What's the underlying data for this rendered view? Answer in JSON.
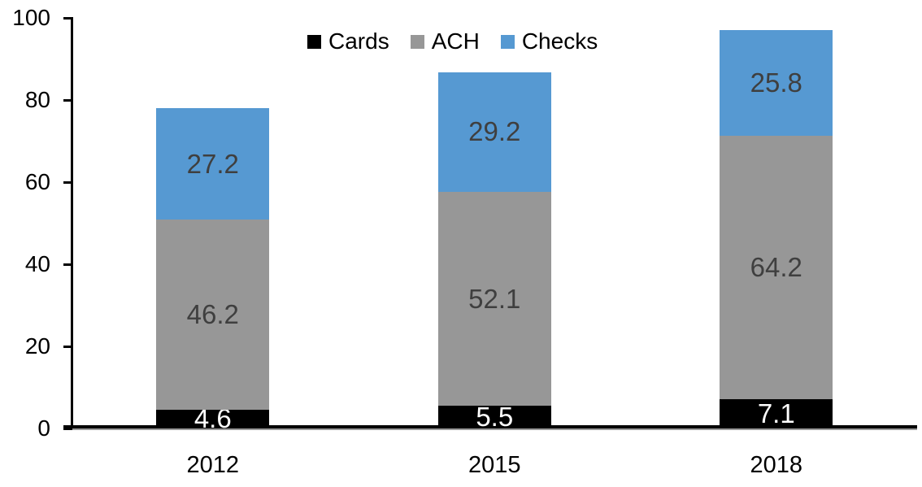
{
  "chart_data": {
    "type": "bar",
    "stacked": true,
    "title": "",
    "xlabel": "",
    "ylabel": "",
    "categories": [
      "2012",
      "2015",
      "2018"
    ],
    "series": [
      {
        "name": "Cards",
        "color": "#000000",
        "label_color": "#ffffff",
        "values": [
          4.6,
          5.5,
          7.1
        ]
      },
      {
        "name": "ACH",
        "color": "#979797",
        "label_color": "#3f3f3f",
        "values": [
          46.2,
          52.1,
          64.2
        ]
      },
      {
        "name": "Checks",
        "color": "#5699d2",
        "label_color": "#3f3f3f",
        "values": [
          27.2,
          29.2,
          25.8
        ]
      }
    ],
    "totals": [
      78.0,
      86.8,
      97.1
    ],
    "ylim": [
      0,
      100
    ],
    "yticks": [
      0,
      20,
      40,
      60,
      80,
      100
    ],
    "grid": false,
    "data_labels": true,
    "legend_position": "top",
    "axis_color": "#000000",
    "background_color": "#ffffff"
  }
}
